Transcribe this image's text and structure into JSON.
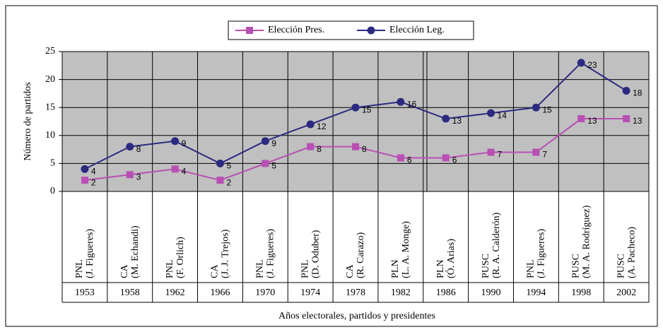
{
  "chart_data": {
    "type": "line",
    "y_label": "Número de partidos",
    "x_label": "Años electorales, partidos y presidentes",
    "categories": [
      "1953",
      "1958",
      "1962",
      "1966",
      "1970",
      "1974",
      "1978",
      "1982",
      "1986",
      "1990",
      "1994",
      "1998",
      "2002"
    ],
    "parties": [
      "PNL",
      "CA",
      "PNL",
      "CA",
      "PNL",
      "PNL",
      "CA",
      "PLN",
      "PLN",
      "PUSC",
      "PNL",
      "PUSC",
      "PUSC"
    ],
    "presidents": [
      "(J. Figueres)",
      "(M. Echandi)",
      "(F. Orlich)",
      "(J. J. Trejos)",
      "(J. Figueres)",
      "(D. Oduber)",
      "(R. Carazo)",
      "(L. A. Monge)",
      "(Ó. Arias)",
      "(R. A. Calderón)",
      "(J. Figueres)",
      "(M. A. Rodríguez)",
      "(A. Pacheco)"
    ],
    "series": [
      {
        "name": "Elección Pres.",
        "color": "#b84fb4",
        "marker": "square",
        "values": [
          2,
          3,
          4,
          2,
          5,
          8,
          8,
          6,
          6,
          7,
          7,
          13,
          13
        ]
      },
      {
        "name": "Elección Leg.",
        "color": "#2b2a80",
        "marker": "circle",
        "values": [
          4,
          8,
          9,
          5,
          9,
          12,
          15,
          16,
          13,
          14,
          15,
          23,
          18
        ]
      }
    ],
    "ylim": [
      0,
      25
    ],
    "yticks": [
      0,
      5,
      10,
      15,
      20,
      25
    ],
    "grid": true,
    "legend": "top"
  }
}
